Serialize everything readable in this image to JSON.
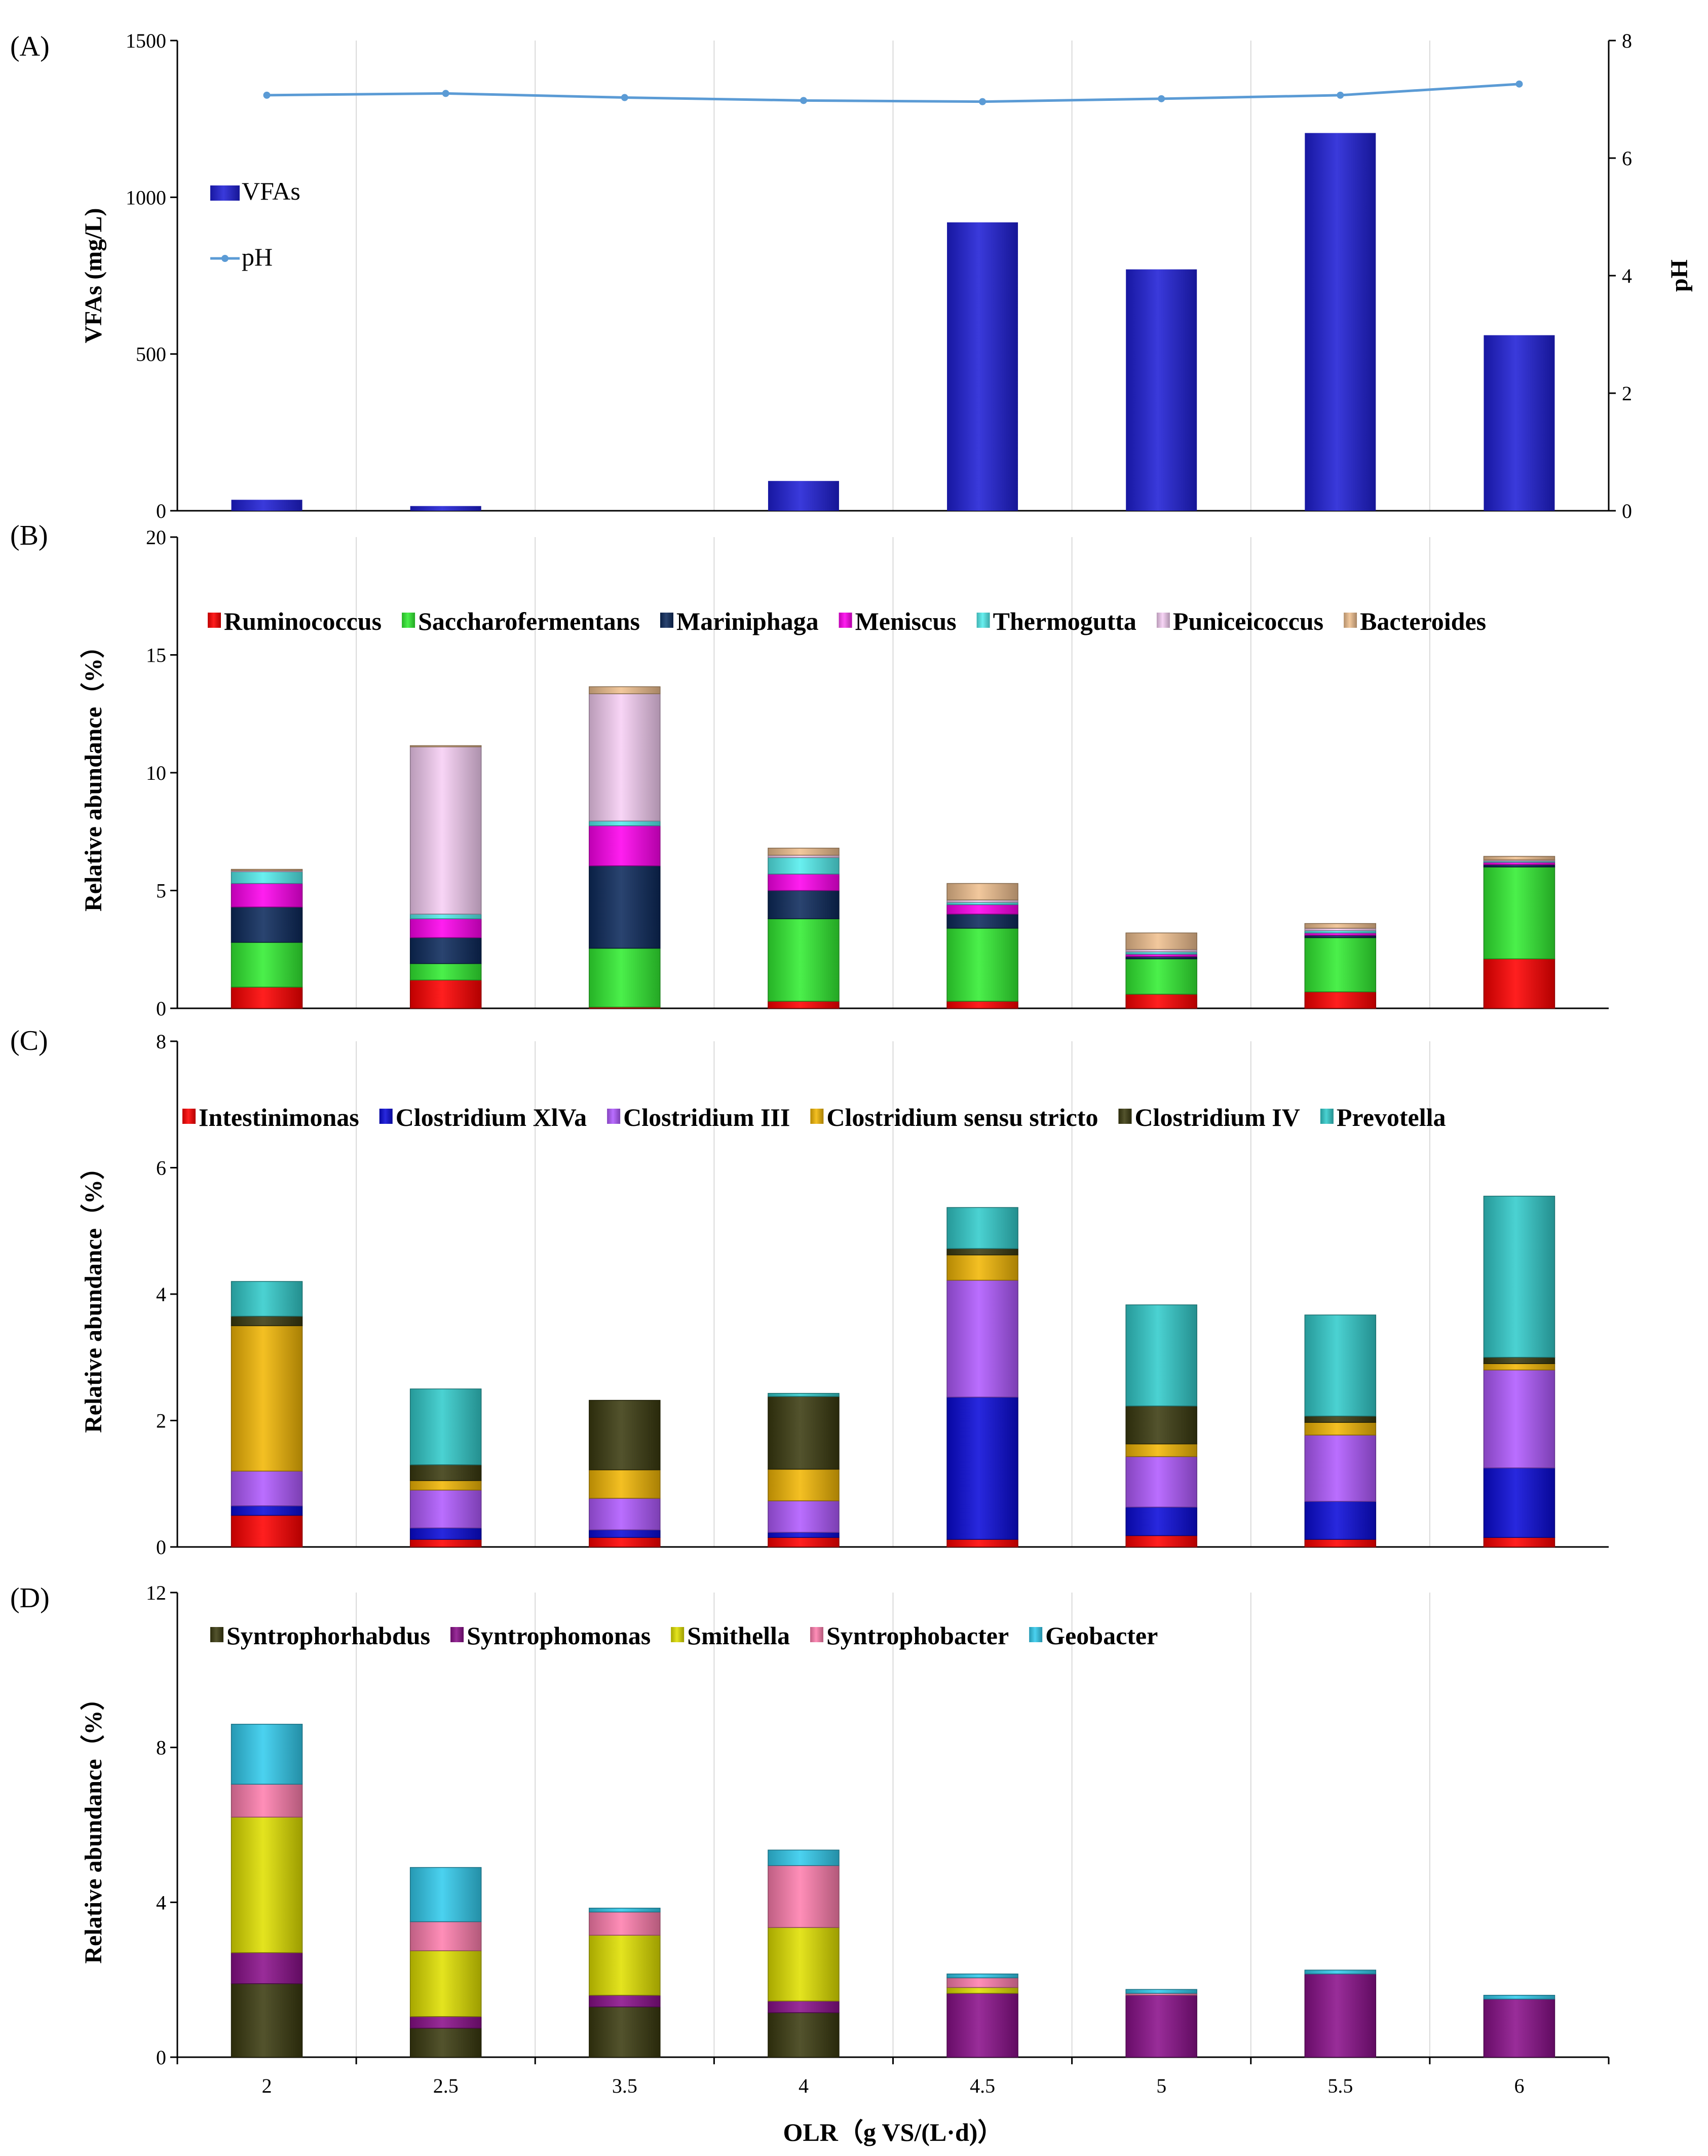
{
  "chart_data": [
    {
      "panel": "(A)",
      "type": "bar",
      "categories": [
        "2",
        "2.5",
        "3.5",
        "4",
        "4.5",
        "5",
        "5.5",
        "6"
      ],
      "series": [
        {
          "name": "VFAs",
          "axis": "left",
          "color": "#1f1fd6",
          "values": [
            35,
            15,
            0,
            95,
            920,
            770,
            1205,
            560
          ]
        },
        {
          "name": "pH",
          "axis": "right",
          "type": "line",
          "color": "#5b9bd5",
          "values": [
            7.07,
            7.1,
            7.03,
            6.98,
            6.96,
            7.01,
            7.07,
            7.26
          ]
        }
      ],
      "ylabel": "VFAs (mg/L)",
      "ylim": [
        0,
        1500
      ],
      "yticks": [
        "0",
        "500",
        "1000",
        "1500"
      ],
      "y2label": "pH",
      "y2lim": [
        0,
        8
      ],
      "y2ticks": [
        "0",
        "2",
        "4",
        "6",
        "8"
      ]
    },
    {
      "panel": "(B)",
      "type": "bar",
      "stacked": true,
      "categories": [
        "2",
        "2.5",
        "3.5",
        "4",
        "4.5",
        "5",
        "5.5",
        "6"
      ],
      "series": [
        {
          "name": "Ruminococcus",
          "color": "#ff0000",
          "values": [
            0.9,
            1.2,
            0.05,
            0.3,
            0.3,
            0.6,
            0.7,
            2.1
          ]
        },
        {
          "name": "Saccharofermentans",
          "color": "#33ee33",
          "values": [
            1.9,
            0.7,
            2.5,
            3.5,
            3.1,
            1.5,
            2.3,
            3.9
          ]
        },
        {
          "name": "Mariniphaga",
          "color": "#0d2a5c",
          "values": [
            1.5,
            1.1,
            3.5,
            1.2,
            0.6,
            0.1,
            0.1,
            0.1
          ]
        },
        {
          "name": "Meniscus",
          "color": "#ff00ee",
          "values": [
            1.0,
            0.8,
            1.7,
            0.7,
            0.4,
            0.1,
            0.1,
            0.1
          ]
        },
        {
          "name": "Thermogutta",
          "color": "#55eeee",
          "values": [
            0.5,
            0.2,
            0.2,
            0.7,
            0.1,
            0.1,
            0.1,
            0.05
          ]
        },
        {
          "name": "Puniceicoccus",
          "color": "#f7cff5",
          "values": [
            0.05,
            7.1,
            5.4,
            0.1,
            0.1,
            0.1,
            0.1,
            0.05
          ]
        },
        {
          "name": "Bacteroides",
          "color": "#f0c090",
          "values": [
            0.05,
            0.05,
            0.3,
            0.3,
            0.7,
            0.7,
            0.2,
            0.15
          ]
        }
      ],
      "ylabel": "Relative  abundance（%）",
      "ylim": [
        0,
        20
      ],
      "yticks": [
        "0",
        "5",
        "10",
        "15",
        "20"
      ]
    },
    {
      "panel": "(C)",
      "type": "bar",
      "stacked": true,
      "categories": [
        "2",
        "2.5",
        "3.5",
        "4",
        "4.5",
        "5",
        "5.5",
        "6"
      ],
      "series": [
        {
          "name": "Intestinimonas",
          "color": "#ff0000",
          "values": [
            0.5,
            0.12,
            0.15,
            0.15,
            0.12,
            0.18,
            0.12,
            0.15
          ]
        },
        {
          "name": "Clostridium XlVa",
          "color": "#0b0bd9",
          "values": [
            0.15,
            0.18,
            0.12,
            0.08,
            2.25,
            0.45,
            0.6,
            1.1
          ]
        },
        {
          "name": "Clostridium III",
          "color": "#b15aff",
          "values": [
            0.55,
            0.6,
            0.5,
            0.5,
            1.85,
            0.8,
            1.05,
            1.55
          ]
        },
        {
          "name": "Clostridium sensu stricto",
          "color": "#f2b705",
          "values": [
            2.3,
            0.15,
            0.45,
            0.5,
            0.4,
            0.2,
            0.2,
            0.1
          ]
        },
        {
          "name": "Clostridium IV",
          "color": "#3b3b10",
          "values": [
            0.15,
            0.25,
            1.1,
            1.15,
            0.1,
            0.6,
            0.1,
            0.1
          ]
        },
        {
          "name": "Prevotella",
          "color": "#33cccc",
          "values": [
            0.55,
            1.2,
            0.0,
            0.05,
            0.65,
            1.6,
            1.6,
            2.55
          ]
        }
      ],
      "ylabel": "Relative  abundance（%）",
      "ylim": [
        0,
        8
      ],
      "yticks": [
        "0",
        "2",
        "4",
        "6",
        "8"
      ]
    },
    {
      "panel": "(D)",
      "type": "bar",
      "stacked": true,
      "categories": [
        "2",
        "2.5",
        "3.5",
        "4",
        "4.5",
        "5",
        "5.5",
        "6"
      ],
      "series": [
        {
          "name": "Syntrophorhabdus",
          "color": "#3b3b10",
          "values": [
            1.9,
            0.75,
            1.3,
            1.15,
            0.0,
            0.0,
            0.0,
            0.0
          ]
        },
        {
          "name": "Syntrophomonas",
          "color": "#8b108b",
          "values": [
            0.8,
            0.3,
            0.3,
            0.3,
            1.65,
            1.6,
            2.15,
            1.5
          ]
        },
        {
          "name": "Smithella",
          "color": "#e0e000",
          "values": [
            3.5,
            1.7,
            1.55,
            1.9,
            0.15,
            0.0,
            0.0,
            0.0
          ]
        },
        {
          "name": "Syntrophobacter",
          "color": "#ff7fae",
          "values": [
            0.85,
            0.75,
            0.6,
            1.6,
            0.25,
            0.05,
            0.0,
            0.0
          ]
        },
        {
          "name": "Geobacter",
          "color": "#33ccee",
          "values": [
            1.55,
            1.4,
            0.1,
            0.4,
            0.1,
            0.1,
            0.1,
            0.1
          ]
        }
      ],
      "ylabel": "Relative  abundance（%）",
      "ylim": [
        0,
        12
      ],
      "yticks": [
        "0",
        "4",
        "8",
        "12"
      ],
      "xlabel": "OLR（g VS/(L·d)）"
    }
  ]
}
